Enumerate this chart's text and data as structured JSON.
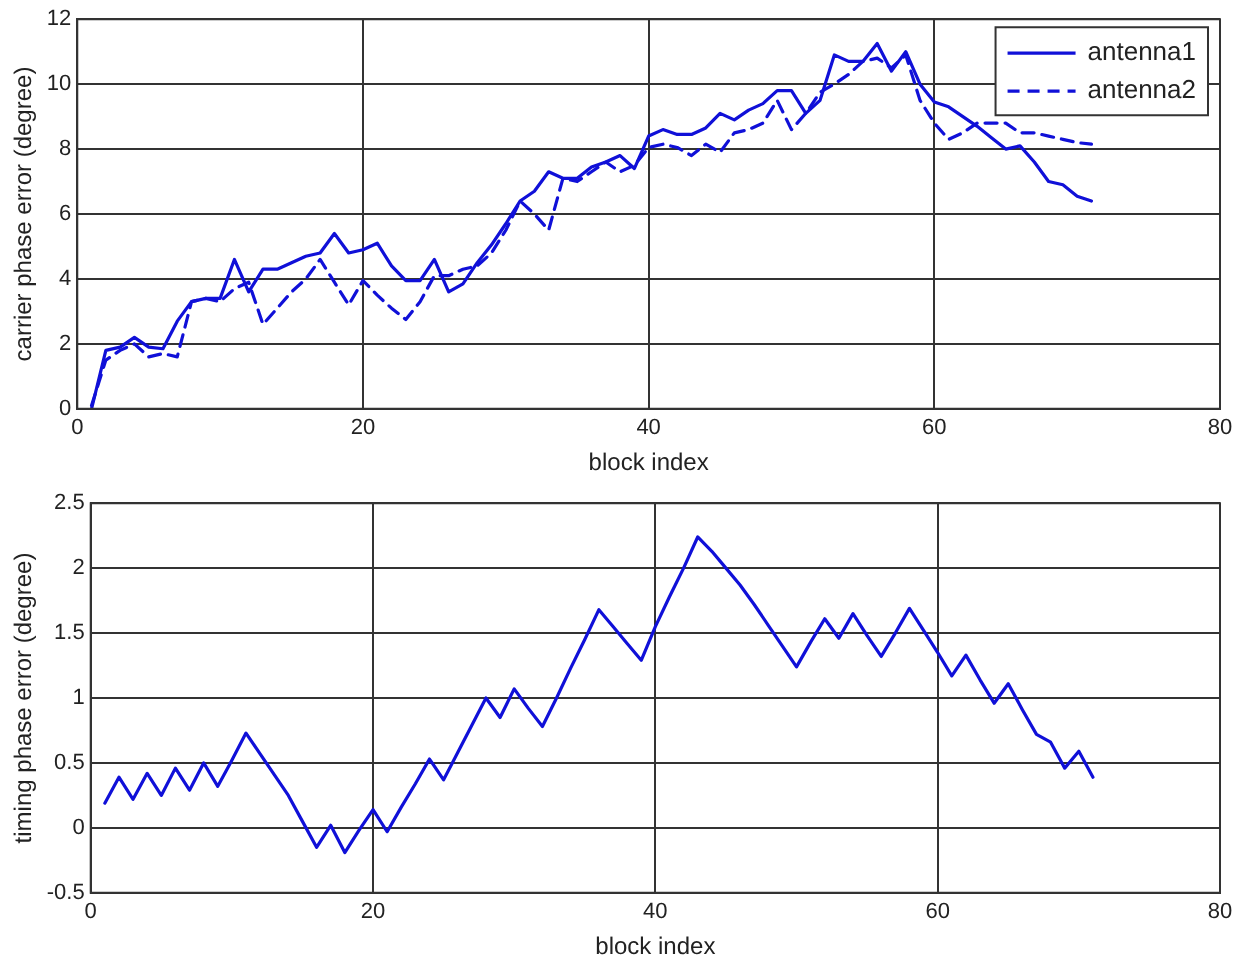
{
  "chart_data": [
    {
      "type": "line",
      "xlabel": "block index",
      "ylabel": "carrier phase error (degree)",
      "x": [
        1,
        2,
        3,
        4,
        5,
        6,
        7,
        8,
        9,
        10,
        11,
        12,
        13,
        14,
        15,
        16,
        17,
        18,
        19,
        20,
        21,
        22,
        23,
        24,
        25,
        26,
        27,
        28,
        29,
        30,
        31,
        32,
        33,
        34,
        35,
        36,
        37,
        38,
        39,
        40,
        41,
        42,
        43,
        44,
        45,
        46,
        47,
        48,
        49,
        50,
        51,
        52,
        53,
        54,
        55,
        56,
        57,
        58,
        59,
        60,
        61,
        62,
        63,
        64,
        65,
        66,
        67,
        68,
        69,
        70,
        71
      ],
      "xlim": [
        0,
        80
      ],
      "xticks": [
        0,
        20,
        40,
        60,
        80
      ],
      "ylim": [
        0,
        12
      ],
      "yticks": [
        0,
        2,
        4,
        6,
        8,
        10,
        12
      ],
      "grid": true,
      "legend": "top right",
      "series": [
        {
          "name": "antenna1",
          "color": "#1010d8",
          "line_style": "solid",
          "values": [
            0,
            1.8,
            1.9,
            2.2,
            1.9,
            1.85,
            2.7,
            3.3,
            3.4,
            3.4,
            4.6,
            3.6,
            4.3,
            4.3,
            4.5,
            4.7,
            4.8,
            5.4,
            4.8,
            4.9,
            5.1,
            4.4,
            3.95,
            3.95,
            4.6,
            3.6,
            3.85,
            4.5,
            5.05,
            5.7,
            6.4,
            6.7,
            7.3,
            7.1,
            7.1,
            7.45,
            7.6,
            7.8,
            7.4,
            8.4,
            8.6,
            8.45,
            8.45,
            8.65,
            9.1,
            8.9,
            9.2,
            9.4,
            9.8,
            9.8,
            9.1,
            9.5,
            10.9,
            10.7,
            10.7,
            11.25,
            10.4,
            11.0,
            10.0,
            9.45,
            9.3,
            9.0,
            8.7,
            8.35,
            8.0,
            8.1,
            7.6,
            7.0,
            6.9,
            6.55,
            6.4
          ]
        },
        {
          "name": "antenna2",
          "color": "#1010d8",
          "line_style": "dashed",
          "values": [
            0.1,
            1.5,
            1.8,
            2.0,
            1.6,
            1.7,
            1.6,
            3.3,
            3.4,
            3.3,
            3.7,
            3.9,
            2.6,
            3.1,
            3.6,
            4.0,
            4.6,
            3.9,
            3.2,
            3.95,
            3.5,
            3.1,
            2.75,
            3.3,
            4.1,
            4.1,
            4.3,
            4.4,
            4.8,
            5.5,
            6.4,
            6.0,
            5.5,
            7.1,
            7.0,
            7.3,
            7.6,
            7.3,
            7.5,
            8.05,
            8.15,
            8.05,
            7.8,
            8.15,
            7.9,
            8.5,
            8.6,
            8.8,
            9.5,
            8.6,
            9.1,
            9.75,
            10.0,
            10.3,
            10.7,
            10.8,
            10.5,
            10.9,
            9.5,
            8.8,
            8.3,
            8.5,
            8.8,
            8.8,
            8.8,
            8.5,
            8.5,
            8.4,
            8.3,
            8.2,
            8.15
          ]
        }
      ]
    },
    {
      "type": "line",
      "xlabel": "block index",
      "ylabel": "timing phase error (degree)",
      "x": [
        1,
        2,
        3,
        4,
        5,
        6,
        7,
        8,
        9,
        10,
        11,
        12,
        13,
        14,
        15,
        16,
        17,
        18,
        19,
        20,
        21,
        22,
        23,
        24,
        25,
        26,
        27,
        28,
        29,
        30,
        31,
        32,
        33,
        34,
        35,
        36,
        37,
        38,
        39,
        40,
        41,
        42,
        43,
        44,
        45,
        46,
        47,
        48,
        49,
        50,
        51,
        52,
        53,
        54,
        55,
        56,
        57,
        58,
        59,
        60,
        61,
        62,
        63,
        64,
        65,
        66,
        67,
        68,
        69,
        70,
        71
      ],
      "xlim": [
        0,
        80
      ],
      "xticks": [
        0,
        20,
        40,
        60,
        80
      ],
      "ylim": [
        -0.5,
        2.5
      ],
      "yticks": [
        -0.5,
        0,
        0.5,
        1,
        1.5,
        2,
        2.5
      ],
      "grid": true,
      "series": [
        {
          "color": "#1010d8",
          "line_style": "solid",
          "values": [
            0.19,
            0.39,
            0.22,
            0.42,
            0.25,
            0.46,
            0.29,
            0.5,
            0.32,
            0.52,
            0.73,
            0.57,
            0.41,
            0.25,
            0.05,
            -0.15,
            0.02,
            -0.19,
            -0.02,
            0.14,
            -0.03,
            0.16,
            0.34,
            0.53,
            0.37,
            0.58,
            0.79,
            1.0,
            0.85,
            1.07,
            0.92,
            0.78,
            1.0,
            1.23,
            1.45,
            1.68,
            1.55,
            1.42,
            1.29,
            1.55,
            1.78,
            2.0,
            2.24,
            2.13,
            2.0,
            1.87,
            1.72,
            1.56,
            1.4,
            1.24,
            1.43,
            1.61,
            1.46,
            1.65,
            1.48,
            1.32,
            1.5,
            1.69,
            1.52,
            1.35,
            1.17,
            1.33,
            1.14,
            0.96,
            1.11,
            0.91,
            0.72,
            0.66,
            0.46,
            0.59,
            0.39
          ]
        }
      ]
    }
  ]
}
